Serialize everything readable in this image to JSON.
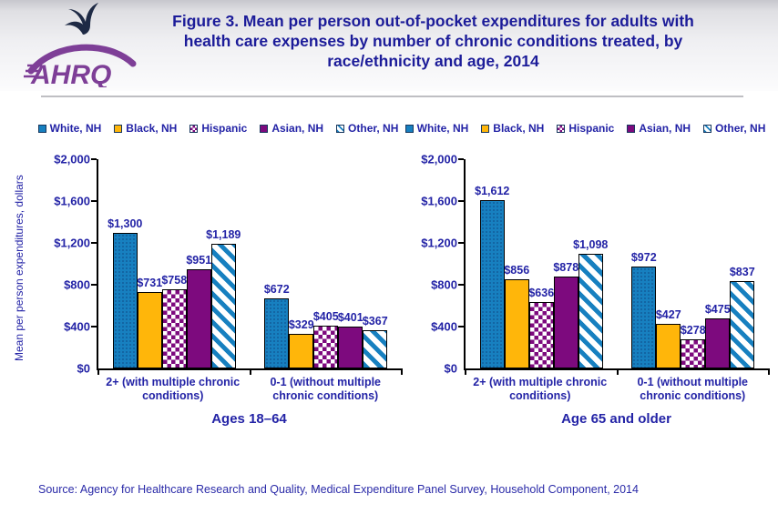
{
  "header": {
    "logo_text": "AHRQ",
    "title": "Figure 3. Mean per person out-of-pocket expenditures for adults with health care expenses by number of chronic conditions treated, by race/ethnicity and age, 2014"
  },
  "source": {
    "text": "Source: Agency for Healthcare Research and Quality, Medical Expenditure Panel Survey, Household Component, 2014"
  },
  "colors": {
    "bar_blue": "#1780C0",
    "bar_gold": "#FFB60A",
    "bar_purple": "#7D0A7E",
    "pattern_background": "#FFFFFF",
    "chart_text_blue": "#2323A6",
    "title_blue": "#1C1C99",
    "logo_purple": "#7E3F97",
    "axis_black": "#000000",
    "divider_gray": "#BFBFC3"
  },
  "chart_data": [
    {
      "type": "bar",
      "title": "Ages 18–64",
      "ylabel": "Mean per person expenditures, dollars",
      "ylim": [
        0,
        2000
      ],
      "yticks": [
        0,
        400,
        800,
        1200,
        1600,
        2000
      ],
      "grid": false,
      "legend_position": "top",
      "categories": [
        "2+ (with multiple chronic conditions)",
        "0-1 (without multiple chronic conditions)"
      ],
      "series": [
        {
          "name": "White, NH",
          "pattern": "blue-dots",
          "values": [
            1300,
            672
          ]
        },
        {
          "name": "Black, NH",
          "pattern": "gold",
          "values": [
            731,
            329
          ]
        },
        {
          "name": "Hispanic",
          "pattern": "checker",
          "values": [
            758,
            405
          ]
        },
        {
          "name": "Asian, NH",
          "pattern": "purple",
          "values": [
            951,
            401
          ]
        },
        {
          "name": "Other, NH",
          "pattern": "blue-diag",
          "values": [
            1189,
            367
          ]
        }
      ]
    },
    {
      "type": "bar",
      "title": "Age 65 and older",
      "ylim": [
        0,
        2000
      ],
      "yticks": [
        0,
        400,
        800,
        1200,
        1600,
        2000
      ],
      "grid": false,
      "legend_position": "top",
      "categories": [
        "2+ (with multiple chronic conditions)",
        "0-1 (without multiple chronic conditions)"
      ],
      "series": [
        {
          "name": "White, NH",
          "pattern": "blue-dots",
          "values": [
            1612,
            972
          ]
        },
        {
          "name": "Black, NH",
          "pattern": "gold",
          "values": [
            856,
            427
          ]
        },
        {
          "name": "Hispanic",
          "pattern": "checker",
          "values": [
            636,
            278
          ]
        },
        {
          "name": "Asian, NH",
          "pattern": "purple",
          "values": [
            878,
            475
          ]
        },
        {
          "name": "Other, NH",
          "pattern": "blue-diag",
          "values": [
            1098,
            837
          ]
        }
      ]
    }
  ]
}
